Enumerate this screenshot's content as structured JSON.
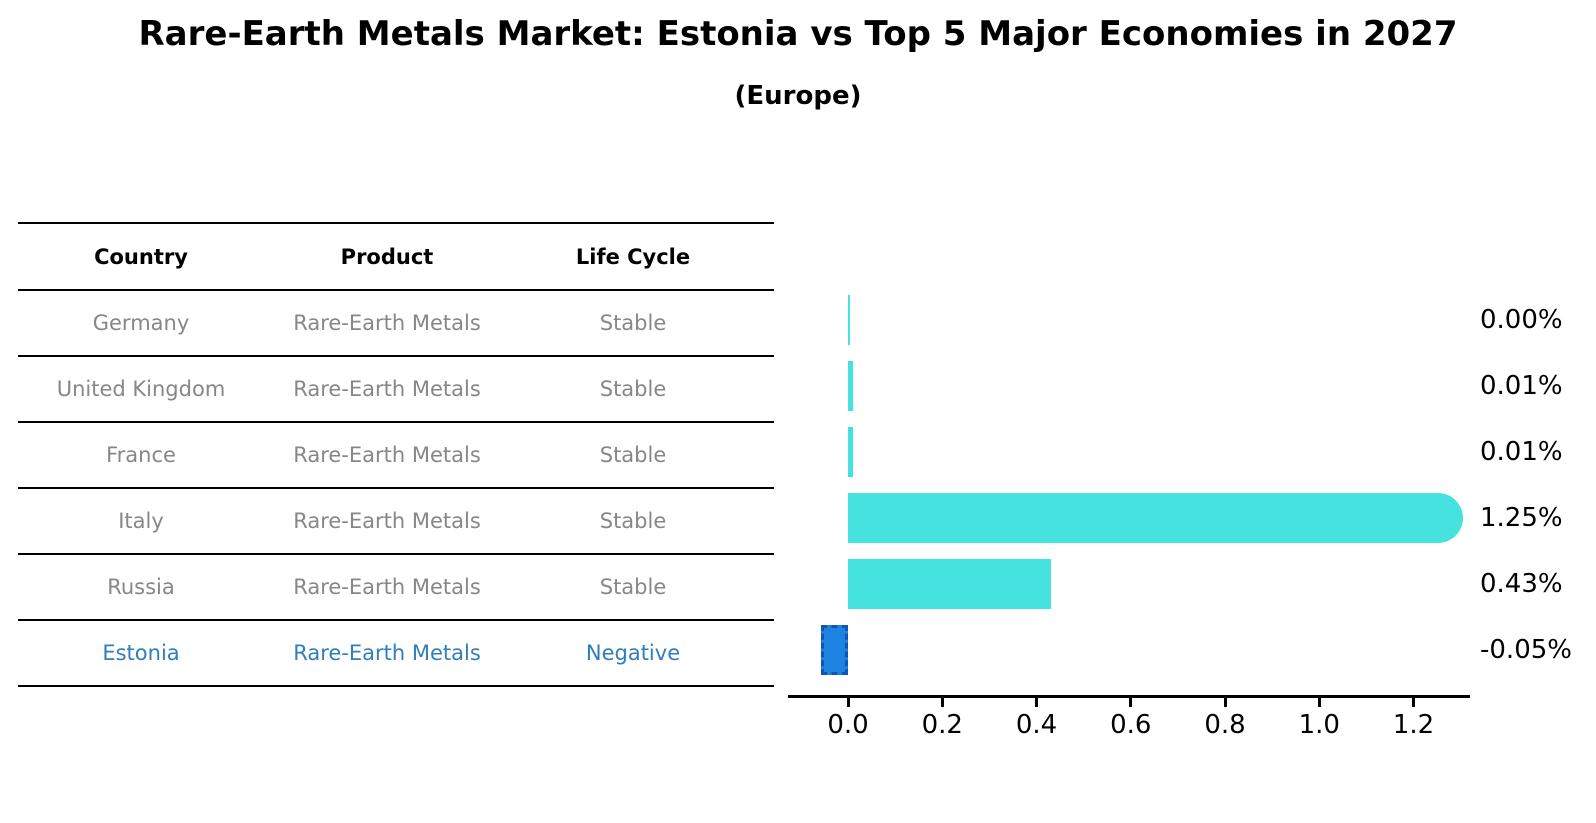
{
  "title": "Rare-Earth Metals Market: Estonia vs Top 5 Major Economies in 2027",
  "subtitle": "(Europe)",
  "table": {
    "headers": [
      "Country",
      "Product",
      "Life Cycle"
    ],
    "rows": [
      {
        "country": "Germany",
        "product": "Rare-Earth Metals",
        "life_cycle": "Stable",
        "highlight": false
      },
      {
        "country": "United Kingdom",
        "product": "Rare-Earth Metals",
        "life_cycle": "Stable",
        "highlight": false
      },
      {
        "country": "France",
        "product": "Rare-Earth Metals",
        "life_cycle": "Stable",
        "highlight": false
      },
      {
        "country": "Italy",
        "product": "Rare-Earth Metals",
        "life_cycle": "Stable",
        "highlight": false
      },
      {
        "country": "Russia",
        "product": "Rare-Earth Metals",
        "life_cycle": "Stable",
        "highlight": false
      },
      {
        "country": "Estonia",
        "product": "Rare-Earth Metals",
        "life_cycle": "Negative",
        "highlight": true
      }
    ]
  },
  "chart_data": {
    "type": "bar",
    "orientation": "horizontal",
    "title": "Rare-Earth Metals Market: Estonia vs Top 5 Major Economies in 2027",
    "subtitle": "(Europe)",
    "categories": [
      "Germany",
      "United Kingdom",
      "France",
      "Italy",
      "Russia",
      "Estonia"
    ],
    "values": [
      0.0,
      0.01,
      0.01,
      1.25,
      0.43,
      -0.05
    ],
    "value_labels": [
      "0.00%",
      "0.01%",
      "0.01%",
      "1.25%",
      "0.43%",
      "-0.05%"
    ],
    "xlabel": "",
    "ylabel": "",
    "xlim": [
      -0.115,
      1.315
    ],
    "x_tick_values": [
      0.0,
      0.2,
      0.4,
      0.6,
      0.8,
      1.0,
      1.2
    ],
    "x_tick_labels": [
      "0.0",
      "0.2",
      "0.4",
      "0.6",
      "0.8",
      "1.0",
      "1.2"
    ],
    "grid": false,
    "legend": false,
    "colors": {
      "bar": "#46e2e0",
      "negative_bar": "#1e82e0",
      "negative_bar_border": "#1255b0",
      "highlight_text": "#2f7ebd",
      "table_text": "#878787",
      "axis": "#000000"
    }
  }
}
